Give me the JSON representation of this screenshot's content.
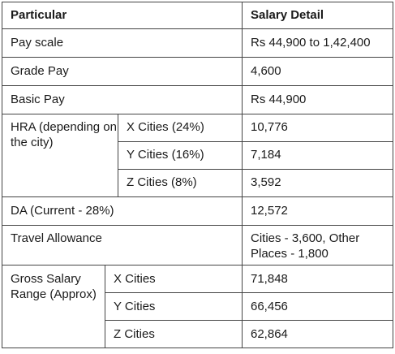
{
  "table": {
    "header": {
      "particular": "Particular",
      "salary": "Salary Detail"
    },
    "pay_scale": {
      "label": "Pay scale",
      "value": "Rs 44,900 to 1,42,400"
    },
    "grade_pay": {
      "label": "Grade Pay",
      "value": "4,600"
    },
    "basic_pay": {
      "label": "Basic Pay",
      "value": "Rs 44,900"
    },
    "hra": {
      "label": "HRA (depending on the city)",
      "rows": [
        {
          "city": "X Cities (24%)",
          "value": "10,776"
        },
        {
          "city": "Y Cities (16%)",
          "value": "7,184"
        },
        {
          "city": "Z Cities (8%)",
          "value": "3,592"
        }
      ]
    },
    "da": {
      "label": "DA (Current - 28%)",
      "value": "12,572"
    },
    "travel": {
      "label": "Travel Allowance",
      "value": "Cities - 3,600, Other Places - 1,800"
    },
    "gross": {
      "label": "Gross Salary Range (Approx)",
      "rows": [
        {
          "city": "X Cities",
          "value": "71,848"
        },
        {
          "city": "Y Cities",
          "value": "66,456"
        },
        {
          "city": "Z Cities",
          "value": "62,864"
        }
      ]
    }
  }
}
